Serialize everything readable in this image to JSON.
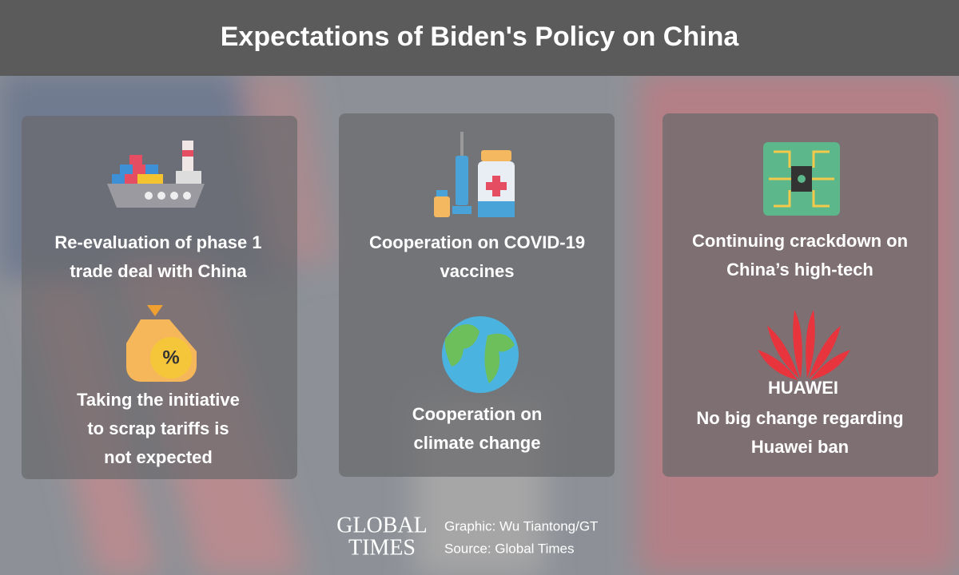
{
  "header": {
    "title": "Expectations of Biden's Policy on China"
  },
  "cards": [
    {
      "items": [
        {
          "lines": [
            "Re-evaluation of phase 1",
            "trade deal with China"
          ]
        },
        {
          "lines": [
            "Taking the initiative",
            "to scrap tariffs is",
            "not expected"
          ]
        }
      ]
    },
    {
      "items": [
        {
          "lines": [
            "Cooperation on COVID-19",
            "vaccines"
          ]
        },
        {
          "lines": [
            "Cooperation on",
            "climate change"
          ]
        }
      ]
    },
    {
      "items": [
        {
          "lines": [
            "Continuing crackdown on",
            "China’s high-tech"
          ]
        },
        {
          "lines": [
            "No big change regarding",
            "Huawei ban"
          ],
          "logo_text": "HUAWEI"
        }
      ]
    }
  ],
  "footer": {
    "brand_lines": [
      "GLOBAL",
      "TIMES"
    ],
    "credits": [
      "Graphic: Wu Tiantong/GT",
      "Source: Global Times"
    ]
  }
}
